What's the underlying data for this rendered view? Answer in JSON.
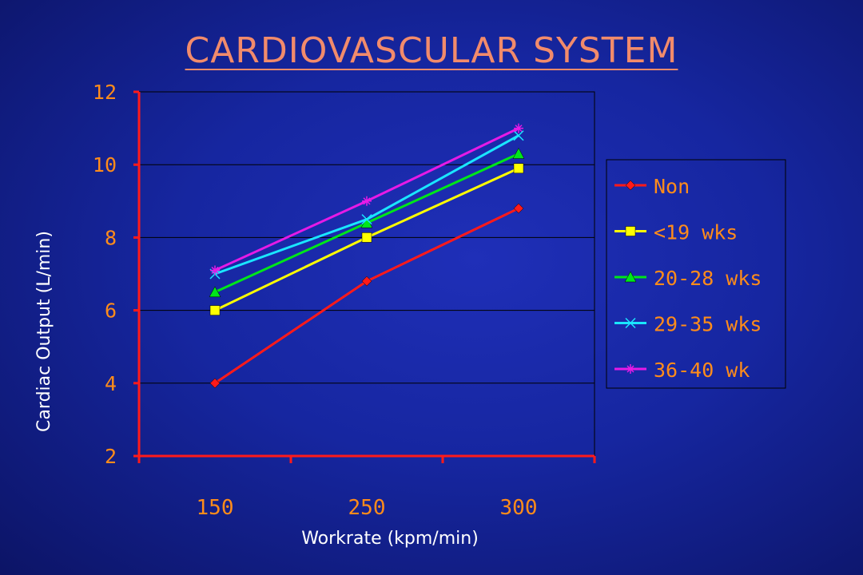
{
  "chart_data": {
    "type": "line",
    "title": "CARDIOVASCULAR SYSTEM",
    "xlabel": "Workrate (kpm/min)",
    "ylabel": "Cardiac Output (L/min)",
    "categories": [
      "150",
      "250",
      "300"
    ],
    "ylim": [
      2,
      12
    ],
    "yticks": [
      "2",
      "4",
      "6",
      "8",
      "10",
      "12"
    ],
    "grid": true,
    "legend_position": "right",
    "series": [
      {
        "name": "Non",
        "values": [
          4.0,
          6.8,
          8.8
        ],
        "color": "#ff1a1a",
        "marker": "diamond"
      },
      {
        "name": "<19 wks",
        "values": [
          6.0,
          8.0,
          9.9
        ],
        "color": "#ffff00",
        "marker": "square"
      },
      {
        "name": "20-28 wks",
        "values": [
          6.5,
          8.4,
          10.3
        ],
        "color": "#00e61a",
        "marker": "triangle"
      },
      {
        "name": "29-35 wks",
        "values": [
          7.0,
          8.5,
          10.8
        ],
        "color": "#1ae6ff",
        "marker": "x"
      },
      {
        "name": "36-40 wk",
        "values": [
          7.1,
          9.0,
          11.0
        ],
        "color": "#e61ae6",
        "marker": "star"
      }
    ]
  },
  "colors": {
    "axis": "#ff1a1a",
    "tick_label": "#ff8c1a",
    "grid": "#000000",
    "axis_title": "#ffffff",
    "title": "#f28b6b"
  }
}
